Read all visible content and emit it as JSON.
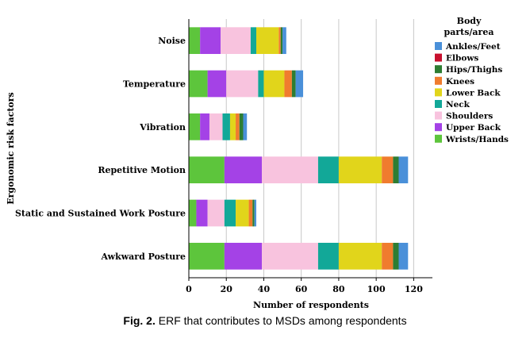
{
  "caption": {
    "label": "Fig. 2.",
    "text": " ERF that contributes to MSDs among respondents"
  },
  "chart_data": {
    "type": "bar",
    "orientation": "horizontal",
    "stacked": true,
    "ylabel": "Ergonomic risk factors",
    "xlabel": "Number of respondents",
    "xlim": [
      0,
      130
    ],
    "xticks": [
      0,
      20,
      40,
      60,
      80,
      100,
      120
    ],
    "grid": "vertical",
    "legend_title": "Body parts/area",
    "legend_placement": "right",
    "categories": [
      "Noise",
      "Temperature",
      "Vibration",
      "Repetitive Motion",
      "Static and Sustained Work Posture",
      "Awkward Posture"
    ],
    "series": [
      {
        "name": "Ankles/Feet",
        "color": "#4a90d9",
        "values": [
          2,
          4,
          2,
          5,
          1,
          5
        ]
      },
      {
        "name": "Elbows",
        "color": "#c8102e",
        "values": [
          0,
          0,
          0,
          0,
          0,
          0
        ]
      },
      {
        "name": "Hips/Thighs",
        "color": "#2e7d32",
        "values": [
          1,
          2,
          2,
          3,
          1,
          3
        ]
      },
      {
        "name": "Knees",
        "color": "#f07c2e",
        "values": [
          1,
          4,
          2,
          6,
          2,
          6
        ]
      },
      {
        "name": "Lower Back",
        "color": "#e1d51b",
        "values": [
          12,
          11,
          3,
          23,
          7,
          23
        ]
      },
      {
        "name": "Neck",
        "color": "#12a898",
        "values": [
          3,
          3,
          4,
          11,
          6,
          11
        ]
      },
      {
        "name": "Shoulders",
        "color": "#f8c3de",
        "values": [
          16,
          17,
          7,
          30,
          9,
          30
        ]
      },
      {
        "name": "Upper Back",
        "color": "#a442e6",
        "values": [
          11,
          10,
          5,
          20,
          6,
          20
        ]
      },
      {
        "name": "Wrists/Hands",
        "color": "#5dc53c",
        "values": [
          6,
          10,
          6,
          19,
          4,
          19
        ]
      }
    ]
  }
}
